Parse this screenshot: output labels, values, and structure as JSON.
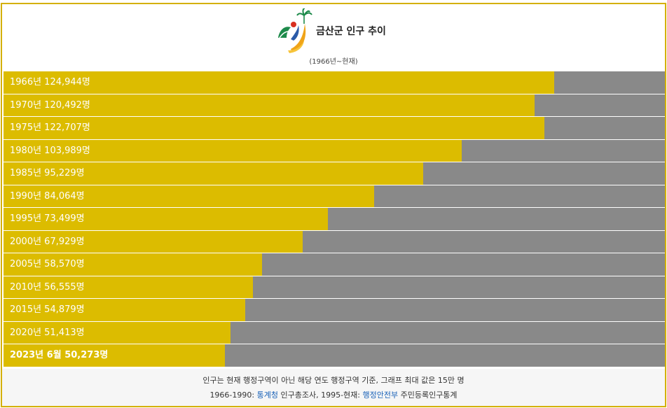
{
  "header": {
    "title": "금산군 인구 추이",
    "subtitle": "(1966년~현재)"
  },
  "colors": {
    "bar_fill": "#dcbc00",
    "bar_background": "#898989",
    "frame_border": "#d4b000",
    "link": "#1a62b8"
  },
  "chart_data": {
    "type": "bar",
    "orientation": "horizontal",
    "xlim": [
      0,
      150000
    ],
    "grid": false,
    "rows": [
      {
        "label": "1966년 124,944명",
        "year": 1966,
        "value": 124944,
        "bold": false
      },
      {
        "label": "1970년 120,492명",
        "year": 1970,
        "value": 120492,
        "bold": false
      },
      {
        "label": "1975년 122,707명",
        "year": 1975,
        "value": 122707,
        "bold": false
      },
      {
        "label": "1980년 103,989명",
        "year": 1980,
        "value": 103989,
        "bold": false
      },
      {
        "label": "1985년 95,229명",
        "year": 1985,
        "value": 95229,
        "bold": false
      },
      {
        "label": "1990년 84,064명",
        "year": 1990,
        "value": 84064,
        "bold": false
      },
      {
        "label": "1995년 73,499명",
        "year": 1995,
        "value": 73499,
        "bold": false
      },
      {
        "label": "2000년 67,929명",
        "year": 2000,
        "value": 67929,
        "bold": false
      },
      {
        "label": "2005년 58,570명",
        "year": 2005,
        "value": 58570,
        "bold": false
      },
      {
        "label": "2010년 56,555명",
        "year": 2010,
        "value": 56555,
        "bold": false
      },
      {
        "label": "2015년 54,879명",
        "year": 2015,
        "value": 54879,
        "bold": false
      },
      {
        "label": "2020년 51,413명",
        "year": 2020,
        "value": 51413,
        "bold": false
      },
      {
        "label": "2023년 6월 50,273명",
        "year": 2023,
        "value": 50273,
        "bold": true
      }
    ]
  },
  "footer": {
    "line1": "인구는 현재 행정구역이 아닌 해당 연도 행정구역 기준, 그래프 최대 값은 15만 명",
    "line2_prefix": "1966-1990: ",
    "line2_link1": "통계청",
    "line2_mid": " 인구총조사, 1995-현재: ",
    "line2_link2": "행정안전부",
    "line2_suffix": " 주민등록인구통계"
  }
}
